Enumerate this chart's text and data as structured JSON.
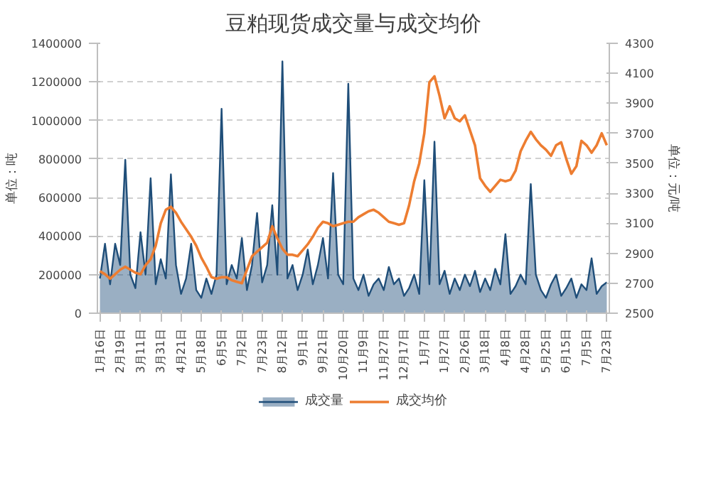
{
  "chart_data": {
    "type": "area",
    "title": "豆粕现货成交量与成交均价",
    "ylabel": "单位：吨",
    "y2label": "单位：元/吨",
    "categories": [
      "1月16日",
      null,
      null,
      null,
      "2月19日",
      null,
      null,
      null,
      "3月11日",
      null,
      null,
      null,
      "3月31日",
      null,
      null,
      null,
      "4月21日",
      null,
      null,
      null,
      "5月18日",
      null,
      null,
      null,
      "6月5日",
      null,
      null,
      null,
      "7月2日",
      null,
      null,
      null,
      "7月23日",
      null,
      null,
      null,
      "8月12日",
      null,
      null,
      null,
      "9月1日",
      null,
      null,
      null,
      "9月21日",
      null,
      null,
      null,
      "10月20日",
      null,
      null,
      null,
      "11月9日",
      null,
      null,
      null,
      "11月27日",
      null,
      null,
      null,
      "12月17日",
      null,
      null,
      null,
      "1月7日",
      null,
      null,
      null,
      "1月27日",
      null,
      null,
      null,
      "2月26日",
      null,
      null,
      null,
      "3月18日",
      null,
      null,
      null,
      "4月8日",
      null,
      null,
      null,
      "4月28日",
      null,
      null,
      null,
      "5月25日",
      null,
      null,
      null,
      "6月15日",
      null,
      null,
      null,
      "7月5日",
      null,
      null,
      null,
      "7月23日"
    ],
    "series": [
      {
        "name": "成交量",
        "color": "#1f4e79",
        "values": [
          180000,
          360000,
          150000,
          360000,
          250000,
          796000,
          200000,
          130000,
          420000,
          200000,
          700000,
          150000,
          280000,
          180000,
          720000,
          250000,
          100000,
          180000,
          360000,
          120000,
          80000,
          180000,
          100000,
          200000,
          1060000,
          150000,
          250000,
          180000,
          390000,
          120000,
          250000,
          520000,
          160000,
          250000,
          560000,
          200000,
          1306000,
          180000,
          250000,
          120000,
          200000,
          330000,
          150000,
          250000,
          390000,
          180000,
          727000,
          200000,
          150000,
          1190000,
          180000,
          120000,
          200000,
          90000,
          150000,
          180000,
          120000,
          240000,
          150000,
          180000,
          90000,
          130000,
          200000,
          100000,
          690000,
          150000,
          890000,
          150000,
          220000,
          100000,
          180000,
          120000,
          200000,
          140000,
          220000,
          110000,
          180000,
          120000,
          230000,
          150000,
          410000,
          100000,
          140000,
          200000,
          150000,
          670000,
          200000,
          120000,
          80000,
          150000,
          200000,
          90000,
          130000,
          180000,
          80000,
          150000,
          120000,
          285000,
          100000,
          140000,
          160000
        ]
      },
      {
        "name": "成交均价",
        "type": "line",
        "axis": "y2",
        "color": "#ed7d31",
        "values": [
          2780,
          2760,
          2730,
          2760,
          2790,
          2810,
          2790,
          2770,
          2760,
          2820,
          2860,
          2950,
          3100,
          3190,
          3210,
          3170,
          3110,
          3060,
          3010,
          2950,
          2870,
          2810,
          2740,
          2730,
          2740,
          2740,
          2720,
          2710,
          2700,
          2790,
          2880,
          2910,
          2940,
          2970,
          3080,
          3000,
          2930,
          2890,
          2890,
          2880,
          2920,
          2960,
          3010,
          3070,
          3110,
          3100,
          3080,
          3090,
          3100,
          3110,
          3110,
          3140,
          3160,
          3180,
          3190,
          3170,
          3140,
          3110,
          3100,
          3090,
          3100,
          3220,
          3380,
          3500,
          3700,
          4040,
          4080,
          3950,
          3800,
          3880,
          3800,
          3780,
          3820,
          3720,
          3620,
          3400,
          3350,
          3310,
          3350,
          3390,
          3380,
          3390,
          3450,
          3580,
          3650,
          3710,
          3660,
          3620,
          3590,
          3550,
          3620,
          3640,
          3530,
          3430,
          3480,
          3650,
          3620,
          3570,
          3620,
          3700,
          3620
        ]
      }
    ],
    "ylim": [
      0,
      1400000
    ],
    "yticks": [
      0,
      200000,
      400000,
      600000,
      800000,
      1000000,
      1200000,
      1400000
    ],
    "y2lim": [
      2500,
      4300
    ],
    "y2ticks": [
      2500,
      2700,
      2900,
      3100,
      3300,
      3500,
      3700,
      3900,
      4100,
      4300
    ],
    "grid": "y",
    "legend": "bottom",
    "marker": "none",
    "line_style": "solid"
  }
}
